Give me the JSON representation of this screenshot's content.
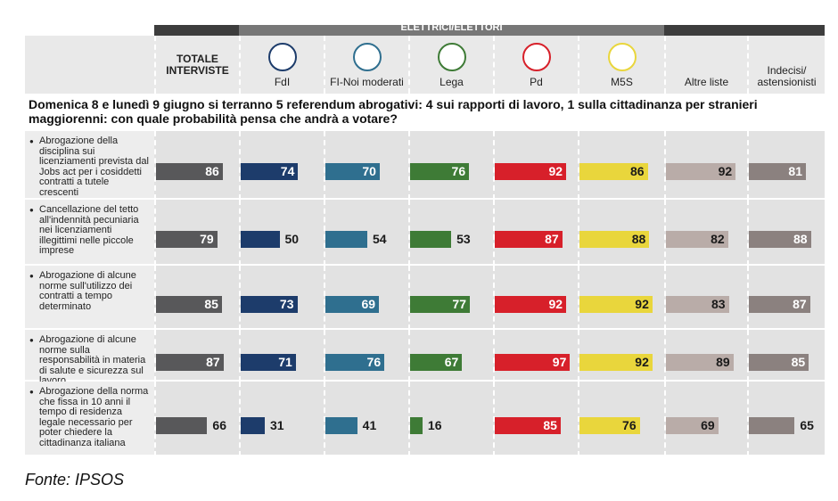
{
  "chart_data": {
    "type": "bar-matrix",
    "header": "ELETTRICI/ELETTORI",
    "question": "Domenica 8 e lunedì 9 giugno si terranno 5 referendum abrogativi: 4 sui rapporti di lavoro, 1 sulla cittadinanza per stranieri maggiorenni: con quale probabilità pensa che andrà a votare?",
    "categories": [
      "Abrogazione della disciplina sui licenziamenti prevista dal Jobs act per i cosiddetti contratti a tutele crescenti",
      "Cancellazione del tetto all'indennità pecuniaria nei licenziamenti illegittimi nelle piccole imprese",
      "Abrogazione di alcune norme sull'utilizzo dei contratti a tempo determinato",
      "Abrogazione di alcune norme sulla responsabilità in materia di salute e sicurezza sul lavoro",
      "Abrogazione della norma che fissa in 10 anni il tempo di residenza legale necessario per poter chiedere la cittadinanza italiana"
    ],
    "series": [
      {
        "name": "TOTALE INTERVISTE",
        "color": "#58585a",
        "label_color": "#ffffff",
        "values": [
          86,
          79,
          85,
          87,
          66
        ]
      },
      {
        "name": "FdI",
        "color": "#1d3c6b",
        "label_color": "#ffffff",
        "values": [
          74,
          50,
          73,
          71,
          31
        ]
      },
      {
        "name": "FI-Noi moderati",
        "color": "#2f6f8f",
        "label_color": "#ffffff",
        "values": [
          70,
          54,
          69,
          76,
          41
        ]
      },
      {
        "name": "Lega",
        "color": "#3e7b36",
        "label_color": "#ffffff",
        "values": [
          76,
          53,
          77,
          67,
          16
        ]
      },
      {
        "name": "Pd",
        "color": "#d7202a",
        "label_color": "#ffffff",
        "values": [
          92,
          87,
          92,
          97,
          85
        ]
      },
      {
        "name": "M5S",
        "color": "#e9d63c",
        "label_color": "#1a1a1a",
        "values": [
          86,
          88,
          92,
          92,
          76
        ]
      },
      {
        "name": "Altre liste",
        "color": "#b9aca8",
        "label_color": "#1a1a1a",
        "values": [
          92,
          82,
          83,
          89,
          69
        ]
      },
      {
        "name": "Indecisi/ astensionisti",
        "color": "#8b817f",
        "label_color": "#ffffff",
        "values": [
          81,
          88,
          87,
          85,
          65
        ]
      }
    ],
    "xlim": [
      0,
      100
    ],
    "source": "Fonte: IPSOS"
  }
}
